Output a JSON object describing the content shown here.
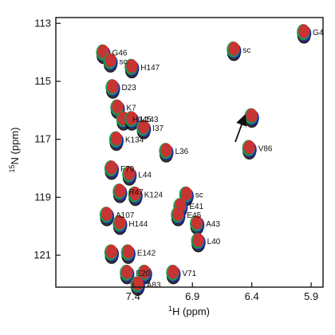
{
  "chart_data": {
    "type": "scatter",
    "title": "",
    "xlabel": "1H (ppm)",
    "ylabel": "15N (ppm)",
    "x_axis": {
      "label_prefix": "1",
      "label_main": "H (ppm)",
      "reversed": true,
      "range": [
        8.05,
        5.8
      ],
      "ticks": [
        "7.4",
        "6.9",
        "6.4",
        "5.9"
      ]
    },
    "y_axis": {
      "label_prefix": "15",
      "label_main": "N (ppm)",
      "reversed": true,
      "range": [
        112.8,
        122.1
      ],
      "ticks": [
        "113",
        "115",
        "117",
        "119",
        "121"
      ]
    },
    "series_colors": {
      "dark_blue": "#1f2a8a",
      "blue": "#2d3ed1",
      "green": "#1b9b4a",
      "red": "#e3262b",
      "black": "#111111"
    },
    "peaks": [
      {
        "x": 5.96,
        "y": 113.3,
        "label": "G4"
      },
      {
        "x": 6.55,
        "y": 113.9,
        "label": "sc"
      },
      {
        "x": 7.65,
        "y": 114.0,
        "label": "G46"
      },
      {
        "x": 7.59,
        "y": 114.3,
        "label": "sc"
      },
      {
        "x": 7.41,
        "y": 114.5,
        "label": "H147"
      },
      {
        "x": 7.57,
        "y": 115.2,
        "label": "D23"
      },
      {
        "x": 7.53,
        "y": 115.9,
        "label": "K7"
      },
      {
        "x": 7.48,
        "y": 116.3,
        "label": "H145"
      },
      {
        "x": 7.41,
        "y": 116.3,
        "label": "L143"
      },
      {
        "x": 7.31,
        "y": 116.6,
        "label": "I37"
      },
      {
        "x": 6.4,
        "y": 116.2,
        "label": ""
      },
      {
        "x": 6.42,
        "y": 117.3,
        "label": "V86"
      },
      {
        "x": 7.54,
        "y": 117.0,
        "label": "K134"
      },
      {
        "x": 7.12,
        "y": 117.4,
        "label": "L36"
      },
      {
        "x": 7.58,
        "y": 118.0,
        "label": "F79"
      },
      {
        "x": 7.43,
        "y": 118.2,
        "label": "L44"
      },
      {
        "x": 7.51,
        "y": 118.8,
        "label": "R47"
      },
      {
        "x": 7.38,
        "y": 118.9,
        "label": "K124"
      },
      {
        "x": 6.95,
        "y": 118.9,
        "label": "sc"
      },
      {
        "x": 7.0,
        "y": 119.3,
        "label": "E41"
      },
      {
        "x": 7.02,
        "y": 119.6,
        "label": "E45"
      },
      {
        "x": 7.62,
        "y": 119.6,
        "label": "A107"
      },
      {
        "x": 7.51,
        "y": 119.9,
        "label": "H144"
      },
      {
        "x": 6.86,
        "y": 119.9,
        "label": "A43"
      },
      {
        "x": 6.85,
        "y": 120.5,
        "label": "L40"
      },
      {
        "x": 7.58,
        "y": 120.9,
        "label": ""
      },
      {
        "x": 7.44,
        "y": 120.9,
        "label": "E142"
      },
      {
        "x": 7.45,
        "y": 121.6,
        "label": "E20"
      },
      {
        "x": 7.3,
        "y": 121.6,
        "label": ""
      },
      {
        "x": 7.06,
        "y": 121.6,
        "label": "V71"
      },
      {
        "x": 7.36,
        "y": 122.0,
        "label": "A83"
      }
    ],
    "annotation": "Arrow near V86 pointing from lower-left toward upper-right",
    "grid": false,
    "legend": "none"
  }
}
